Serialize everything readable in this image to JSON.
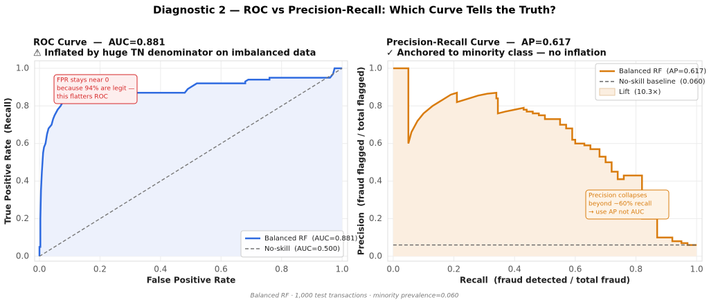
{
  "title": "Diagnostic 2 — ROC vs Precision-Recall: Which Curve Tells the Truth?",
  "footnote": "Balanced RF · 1,000 test transactions · minority prevalence=0.060",
  "chart_data": [
    {
      "type": "line",
      "title": "ROC Curve  —  AUC=0.881",
      "subtitle": "⚠ Inflated by huge TN denominator on imbalanced data",
      "x_label": "False Positive Rate",
      "y_label": "True Positive Rate  (Recall)",
      "annotation": [
        "FPR stays near 0",
        "because 94% are legit —",
        "this flatters ROC"
      ],
      "annotation_color": "#d62728",
      "xlim": [
        -0.016,
        1.018
      ],
      "ylim": [
        -0.026,
        1.04
      ],
      "xticks": [
        {
          "value": 0,
          "label": "0.0"
        },
        {
          "value": 0.2,
          "label": "0.2"
        },
        {
          "value": 0.4,
          "label": "0.4"
        },
        {
          "value": 0.6,
          "label": "0.6"
        },
        {
          "value": 0.8,
          "label": "0.8"
        },
        {
          "value": 1,
          "label": "1.0"
        }
      ],
      "yticks": [
        {
          "value": 0,
          "label": "0.0"
        },
        {
          "value": 0.2,
          "label": "0.2"
        },
        {
          "value": 0.4,
          "label": "0.4"
        },
        {
          "value": 0.6,
          "label": "0.6"
        },
        {
          "value": 0.8,
          "label": "0.8"
        },
        {
          "value": 1,
          "label": "1.0"
        }
      ],
      "grid": true,
      "legend": "lower right",
      "fill_color": "#edf1fc",
      "series": [
        {
          "name": "Balanced RF  (AUC=0.881)",
          "color": "#2f6be0",
          "dash": false,
          "fill": true,
          "x": [
            0,
            0,
            0.003,
            0.003,
            0.005,
            0.008,
            0.01,
            0.012,
            0.015,
            0.02,
            0.025,
            0.03,
            0.04,
            0.045,
            0.05,
            0.06,
            0.07,
            0.08,
            0.09,
            0.1,
            0.12,
            0.48,
            0.49,
            0.5,
            0.52,
            0.68,
            0.68,
            0.69,
            0.76,
            0.76,
            0.96,
            0.97,
            0.975,
            1
          ],
          "values": [
            0,
            0.05,
            0.05,
            0.2,
            0.35,
            0.45,
            0.5,
            0.55,
            0.58,
            0.6,
            0.65,
            0.68,
            0.7,
            0.73,
            0.75,
            0.78,
            0.8,
            0.83,
            0.85,
            0.86,
            0.87,
            0.87,
            0.89,
            0.9,
            0.92,
            0.92,
            0.93,
            0.94,
            0.94,
            0.95,
            0.95,
            0.97,
            1,
            1
          ]
        },
        {
          "name": "No-skill  (AUC=0.500)",
          "color": "#777777",
          "dash": true,
          "fill": false,
          "x": [
            0,
            1
          ],
          "values": [
            0,
            1
          ]
        }
      ]
    },
    {
      "type": "line",
      "title": "Precision-Recall Curve  —  AP=0.617",
      "subtitle": "✓ Anchored to minority class — no inflation",
      "x_label": "Recall  (fraud detected / total fraud)",
      "y_label": "Precision  (fraud flagged / total flagged)",
      "annotation": [
        "Precision collapses",
        "beyond ~60% recall",
        "→ use AP not AUC"
      ],
      "annotation_color": "#d97c0e",
      "xlim": [
        -0.018,
        1.018
      ],
      "ylim": [
        -0.026,
        1.04
      ],
      "xticks": [
        {
          "value": 0,
          "label": "0.0"
        },
        {
          "value": 0.2,
          "label": "0.2"
        },
        {
          "value": 0.4,
          "label": "0.4"
        },
        {
          "value": 0.6,
          "label": "0.6"
        },
        {
          "value": 0.8,
          "label": "0.8"
        },
        {
          "value": 1,
          "label": "1.0"
        }
      ],
      "yticks": [
        {
          "value": 0,
          "label": "0.0"
        },
        {
          "value": 0.2,
          "label": "0.2"
        },
        {
          "value": 0.4,
          "label": "0.4"
        },
        {
          "value": 0.6,
          "label": "0.6"
        },
        {
          "value": 0.8,
          "label": "0.8"
        },
        {
          "value": 1,
          "label": "1.0"
        }
      ],
      "grid": true,
      "legend": "upper right",
      "fill_color": "#fbeee0",
      "fill_label": "Lift  (10.3×)",
      "series": [
        {
          "name": "Balanced RF  (AP=0.617)",
          "color": "#d97c0e",
          "dash": false,
          "fill": true,
          "x": [
            0,
            0.05,
            0.05,
            0.06,
            0.08,
            0.1,
            0.13,
            0.16,
            0.19,
            0.21,
            0.21,
            0.25,
            0.28,
            0.31,
            0.34,
            0.34,
            0.345,
            0.345,
            0.37,
            0.4,
            0.43,
            0.43,
            0.44,
            0.44,
            0.46,
            0.46,
            0.48,
            0.48,
            0.5,
            0.5,
            0.55,
            0.55,
            0.57,
            0.57,
            0.59,
            0.59,
            0.6,
            0.6,
            0.63,
            0.63,
            0.65,
            0.65,
            0.68,
            0.68,
            0.7,
            0.7,
            0.72,
            0.72,
            0.74,
            0.74,
            0.76,
            0.76,
            0.82,
            0.82,
            0.87,
            0.87,
            0.92,
            0.92,
            0.95,
            0.95,
            0.97,
            0.97,
            1
          ],
          "values": [
            1,
            1,
            0.6,
            0.66,
            0.72,
            0.76,
            0.8,
            0.83,
            0.86,
            0.87,
            0.82,
            0.84,
            0.855,
            0.865,
            0.87,
            0.84,
            0.84,
            0.76,
            0.77,
            0.78,
            0.79,
            0.78,
            0.78,
            0.77,
            0.77,
            0.76,
            0.76,
            0.75,
            0.75,
            0.73,
            0.73,
            0.7,
            0.7,
            0.68,
            0.68,
            0.62,
            0.62,
            0.6,
            0.6,
            0.59,
            0.59,
            0.57,
            0.57,
            0.53,
            0.53,
            0.5,
            0.5,
            0.45,
            0.45,
            0.41,
            0.41,
            0.43,
            0.43,
            0.2,
            0.2,
            0.1,
            0.1,
            0.08,
            0.08,
            0.07,
            0.07,
            0.06,
            0.06
          ]
        },
        {
          "name": "No-skill baseline  (0.060)",
          "color": "#666666",
          "dash": true,
          "fill": false,
          "x": [
            0,
            1
          ],
          "values": [
            0.06,
            0.06
          ]
        }
      ]
    }
  ]
}
